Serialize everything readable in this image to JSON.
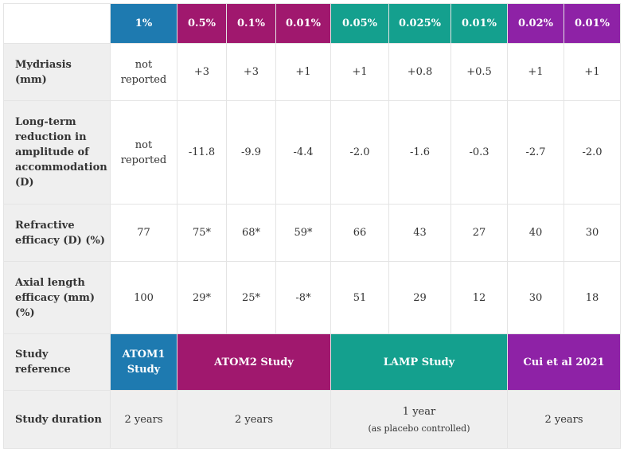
{
  "header": {
    "concentrations": [
      "1%",
      "0.5%",
      "0.1%",
      "0.01%",
      "0.05%",
      "0.025%",
      "0.01%",
      "0.02%",
      "0.01%"
    ]
  },
  "rows": [
    {
      "label": "Mydriasis (mm)",
      "values": [
        "not reported",
        "+3",
        "+3",
        "+1",
        "+1",
        "+0.8",
        "+0.5",
        "+1",
        "+1"
      ]
    },
    {
      "label": "Long-term reduction in amplitude of accommodation (D)",
      "values": [
        "not reported",
        "-11.8",
        "-9.9",
        "-4.4",
        "-2.0",
        "-1.6",
        "-0.3",
        "-2.7",
        "-2.0"
      ]
    },
    {
      "label": "Refractive efficacy (D) (%)",
      "values": [
        "77",
        "75*",
        "68*",
        "59*",
        "66",
        "43",
        "27",
        "40",
        "30"
      ]
    },
    {
      "label": "Axial length efficacy (mm) (%)",
      "values": [
        "100",
        "29*",
        "25*",
        "-8*",
        "51",
        "29",
        "12",
        "30",
        "18"
      ]
    }
  ],
  "study_reference": {
    "label": "Study reference",
    "atom1": "ATOM1 Study",
    "atom2": "ATOM2 Study",
    "lamp": "LAMP Study",
    "cui": "Cui et al 2021"
  },
  "study_duration": {
    "label": "Study duration",
    "atom1": "2 years",
    "atom2": "2 years",
    "lamp": "1 year",
    "lamp_note": "(as placebo controlled)",
    "cui": "2 years"
  },
  "colors": {
    "atom1_blue": "#1e7ab0",
    "atom2_magenta": "#a0186e",
    "lamp_teal": "#14a08e",
    "cui_purple": "#8e22a6",
    "row_header_gray": "#efefef"
  }
}
